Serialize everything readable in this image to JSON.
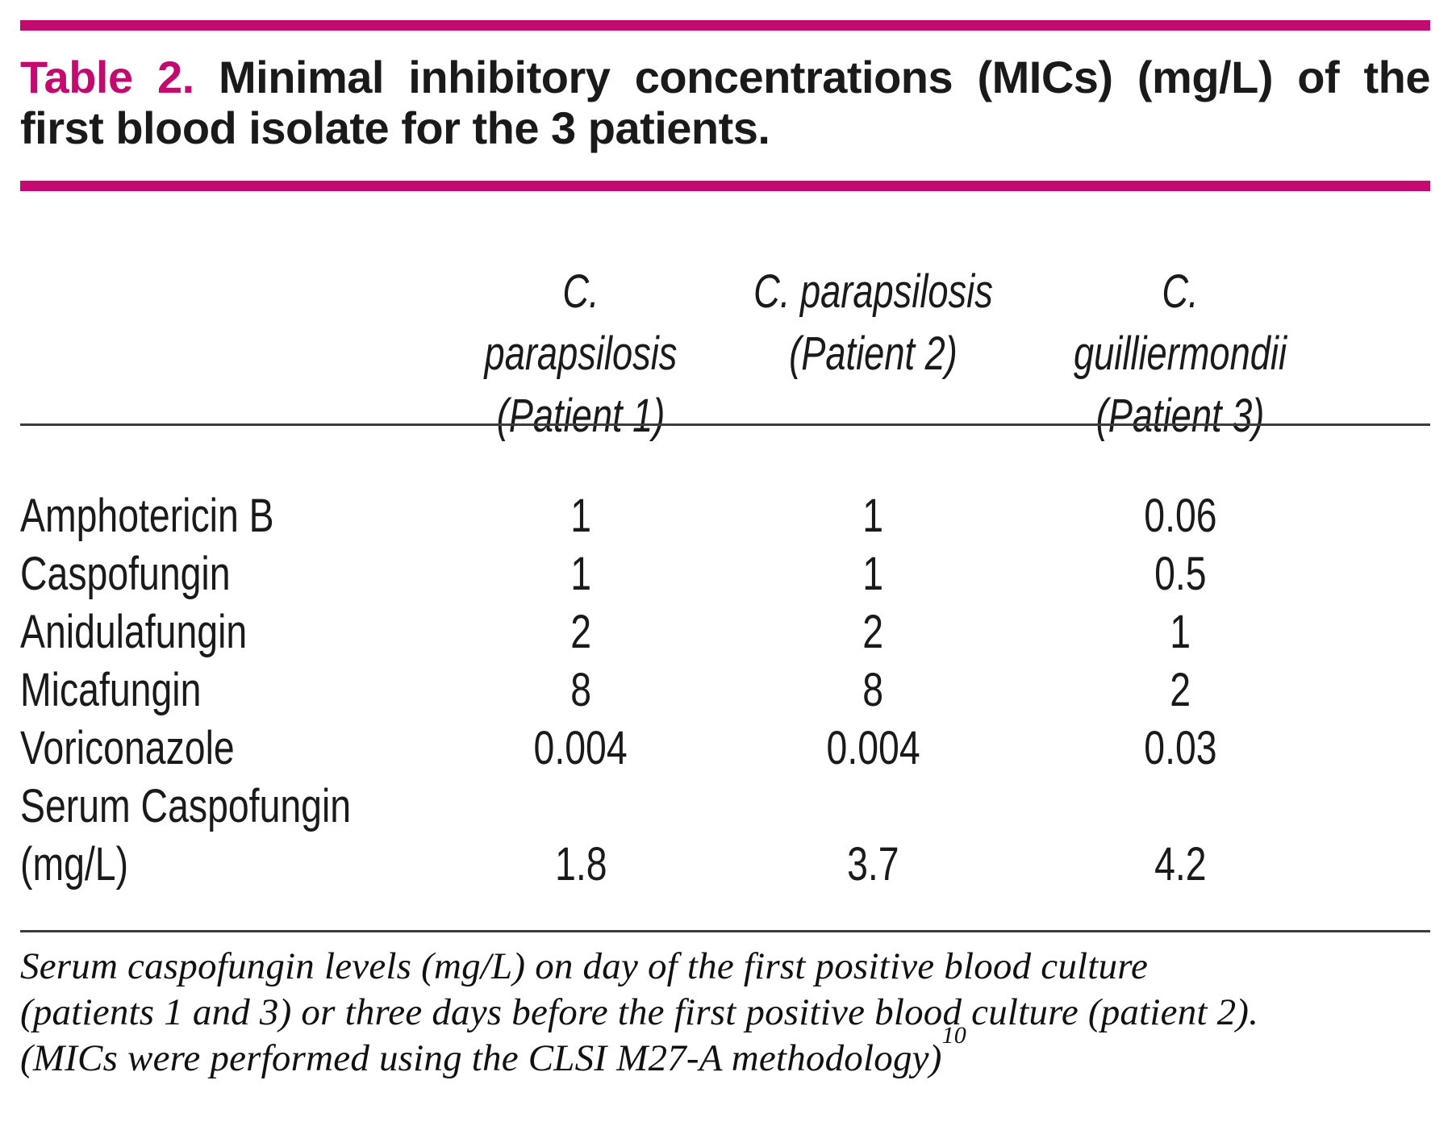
{
  "colors": {
    "accent": "#c40a70",
    "text": "#1a1a1a",
    "rule": "#3c3c3c"
  },
  "title": {
    "label": "Table 2.",
    "line1_rest": "Minimal inhibitory concentrations (MICs) (mg/L) of the",
    "line2": "first blood isolate for the 3 patients."
  },
  "table": {
    "columns": [
      {
        "species": "C. parapsilosis",
        "patient": "(Patient 1)"
      },
      {
        "species": "C. parapsilosis",
        "patient": "(Patient 2)"
      },
      {
        "species": "C. guilliermondii",
        "patient": "(Patient 3)"
      }
    ],
    "rows": [
      {
        "label": "Amphotericin B",
        "values": [
          "1",
          "1",
          "0.06"
        ]
      },
      {
        "label": "Caspofungin",
        "values": [
          "1",
          "1",
          "0.5"
        ]
      },
      {
        "label": "Anidulafungin",
        "values": [
          "2",
          "2",
          "1"
        ]
      },
      {
        "label": "Micafungin",
        "values": [
          "8",
          "8",
          "2"
        ]
      },
      {
        "label": "Voriconazole",
        "values": [
          "0.004",
          "0.004",
          "0.03"
        ]
      },
      {
        "label": "Serum Caspofungin",
        "label2": "(mg/L)",
        "values": [
          "1.8",
          "3.7",
          "4.2"
        ]
      }
    ]
  },
  "footnote": {
    "line1": "Serum caspofungin levels (mg/L) on day of the first positive blood culture",
    "line2": "(patients 1 and 3) or three days before the first positive blood culture (patient 2).",
    "line3": "(MICs were performed using the CLSI M27-A methodology)",
    "reference_superscript": "10"
  }
}
